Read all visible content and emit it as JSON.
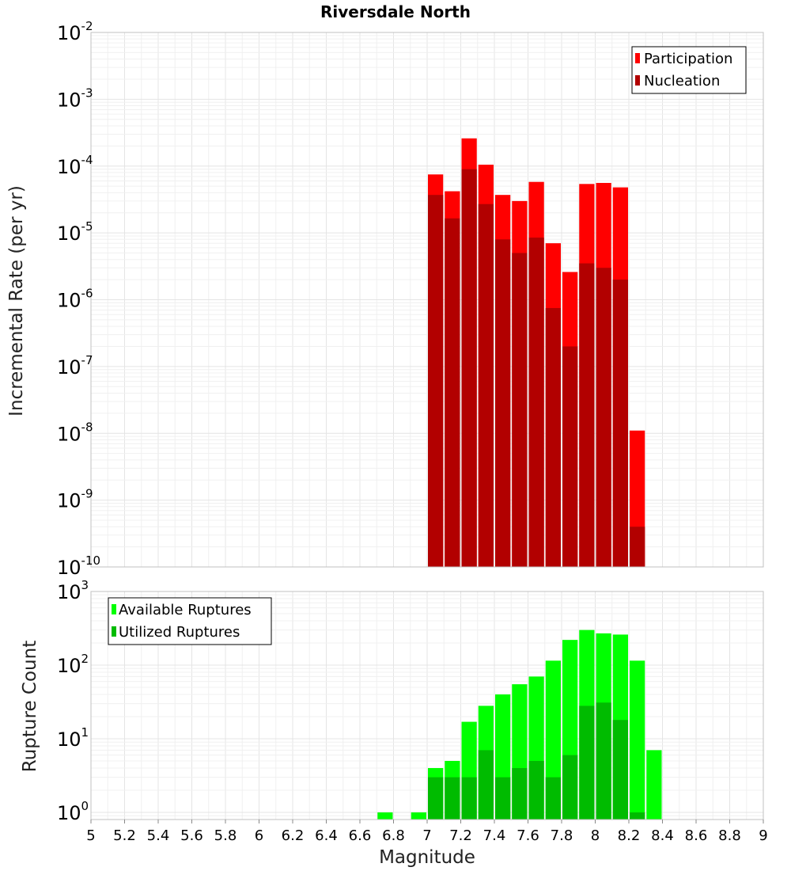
{
  "chart_data": [
    {
      "type": "bar",
      "title": "Riversdale North",
      "xlabel": "Magnitude",
      "ylabel": "Incremental Rate (per yr)",
      "yscale": "log",
      "ylim": [
        1e-10,
        0.01
      ],
      "xlim": [
        5,
        9
      ],
      "bin_width": 0.1,
      "grid": true,
      "legend_position": "top-right",
      "x": [
        7.05,
        7.15,
        7.25,
        7.35,
        7.45,
        7.55,
        7.65,
        7.75,
        7.85,
        7.95,
        8.05,
        8.15,
        8.25
      ],
      "series": [
        {
          "name": "Participation",
          "color": "#ff0000",
          "values": [
            7.5e-05,
            4.2e-05,
            0.00026,
            0.000105,
            3.7e-05,
            3e-05,
            5.8e-05,
            7e-06,
            2.6e-06,
            5.4e-05,
            5.6e-05,
            4.8e-05,
            1.1e-08
          ]
        },
        {
          "name": "Nucleation",
          "color": "#b20000",
          "values": [
            3.7e-05,
            1.65e-05,
            9e-05,
            2.7e-05,
            8e-06,
            5e-06,
            8.5e-06,
            7.5e-07,
            2e-07,
            3.5e-06,
            3e-06,
            2e-06,
            4e-10
          ]
        }
      ]
    },
    {
      "type": "bar",
      "xlabel": "Magnitude",
      "ylabel": "Rupture Count",
      "yscale": "log",
      "ylim": [
        0.8,
        1000
      ],
      "xlim": [
        5,
        9
      ],
      "bin_width": 0.1,
      "grid": true,
      "legend_position": "top-left",
      "x": [
        6.75,
        6.95,
        7.05,
        7.15,
        7.25,
        7.35,
        7.45,
        7.55,
        7.65,
        7.75,
        7.85,
        7.95,
        8.05,
        8.15,
        8.25,
        8.35
      ],
      "series": [
        {
          "name": "Available Ruptures",
          "color": "#00ff00",
          "values": [
            1,
            1,
            4,
            5,
            17,
            28,
            40,
            55,
            70,
            115,
            220,
            300,
            270,
            260,
            115,
            7
          ]
        },
        {
          "name": "Utilized Ruptures",
          "color": "#00bb00",
          "values": [
            0,
            0,
            3,
            3,
            3,
            7,
            3,
            4,
            5,
            3,
            6,
            28,
            31,
            18,
            1,
            0
          ]
        }
      ]
    }
  ],
  "x_ticks": [
    "5",
    "5.2",
    "5.4",
    "5.6",
    "5.8",
    "6",
    "6.2",
    "6.4",
    "6.6",
    "6.8",
    "7",
    "7.2",
    "7.4",
    "7.6",
    "7.8",
    "8",
    "8.2",
    "8.4",
    "8.6",
    "8.8",
    "9"
  ],
  "top_y_ticks": [
    {
      "base": "10",
      "exp": "-10"
    },
    {
      "base": "10",
      "exp": "-9"
    },
    {
      "base": "10",
      "exp": "-8"
    },
    {
      "base": "10",
      "exp": "-7"
    },
    {
      "base": "10",
      "exp": "-6"
    },
    {
      "base": "10",
      "exp": "-5"
    },
    {
      "base": "10",
      "exp": "-4"
    },
    {
      "base": "10",
      "exp": "-3"
    },
    {
      "base": "10",
      "exp": "-2"
    }
  ],
  "bottom_y_ticks": [
    {
      "base": "10",
      "exp": "0"
    },
    {
      "base": "10",
      "exp": "1"
    },
    {
      "base": "10",
      "exp": "2"
    },
    {
      "base": "10",
      "exp": "3"
    }
  ]
}
